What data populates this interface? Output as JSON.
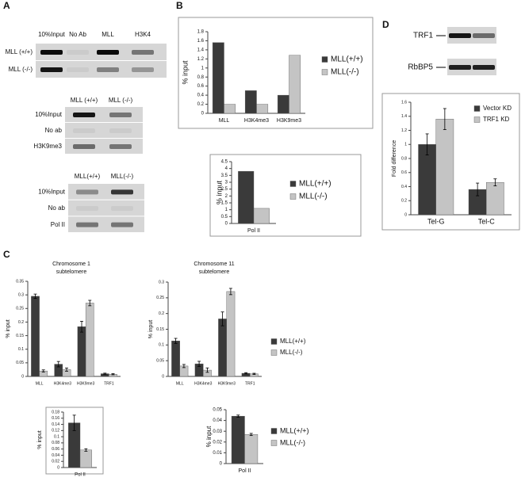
{
  "panel_labels": [
    "A",
    "B",
    "C",
    "D"
  ],
  "gels": [
    {
      "columns": [
        "10%Input",
        "No Ab",
        "MLL",
        "H3K4"
      ],
      "rows": [
        "MLL (+/+)",
        "MLL (-/-)"
      ]
    },
    {
      "columns": [
        "MLL (+/+)",
        "MLL (-/-)"
      ],
      "rows": [
        "10%Input",
        "No ab",
        "H3K9me3"
      ]
    },
    {
      "columns": [
        "MLL(+/+)",
        "MLL(-/-)"
      ],
      "rows": [
        "10%Input",
        "No ab",
        "Pol II"
      ]
    },
    {
      "columns": [],
      "rows": [
        "TRF1",
        "RbBP5"
      ]
    }
  ],
  "chart_data": [
    {
      "type": "bar",
      "y_label": "% input",
      "categories": [
        "MLL",
        "H3K4me3",
        "H3K9me3"
      ],
      "series": [
        {
          "name": "MLL(+/+)",
          "color": "#3a3a3a",
          "values": [
            1.56,
            0.5,
            0.4
          ]
        },
        {
          "name": "MLL(-/-)",
          "color": "#c4c4c4",
          "values": [
            0.2,
            0.2,
            1.28
          ]
        }
      ],
      "ylim": [
        0,
        1.8
      ],
      "yticks": [
        0,
        0.2,
        0.4,
        0.6,
        0.8,
        1,
        1.2,
        1.4,
        1.6,
        1.8
      ],
      "legend": "right"
    },
    {
      "type": "bar",
      "y_label": "% input",
      "categories": [
        "Pol II"
      ],
      "series": [
        {
          "name": "MLL(+/+)",
          "color": "#3a3a3a",
          "values": [
            3.8
          ]
        },
        {
          "name": "MLL(-/-)",
          "color": "#c4c4c4",
          "values": [
            1.1
          ]
        }
      ],
      "ylim": [
        0,
        4.5
      ],
      "yticks": [
        0,
        0.5,
        1,
        1.5,
        2,
        2.5,
        3,
        3.5,
        4,
        4.5
      ],
      "legend": "right"
    },
    {
      "type": "bar",
      "title": "Chromosome 1",
      "subtitle": "subtelomere",
      "y_label": "% input",
      "categories": [
        "MLL",
        "H3K4me3",
        "H3K9me3",
        "TRF1"
      ],
      "series": [
        {
          "color": "#3a3a3a",
          "values": [
            0.295,
            0.045,
            0.183,
            0.01
          ],
          "errors": [
            0.008,
            0.01,
            0.02,
            0.002
          ]
        },
        {
          "color": "#c4c4c4",
          "values": [
            0.02,
            0.025,
            0.27,
            0.008
          ],
          "errors": [
            0.004,
            0.006,
            0.01,
            0.002
          ]
        }
      ],
      "ylim": [
        0,
        0.35
      ],
      "yticks": [
        0,
        0.05,
        0.1,
        0.15,
        0.2,
        0.25,
        0.3,
        0.35
      ]
    },
    {
      "type": "bar",
      "title": "Chromosome 11",
      "subtitle": "subtelomere",
      "y_label": "% input",
      "categories": [
        "MLL",
        "H3K4me3",
        "H3K9me3",
        "TRF1"
      ],
      "series": [
        {
          "name": "MLL(+/+)",
          "color": "#3a3a3a",
          "values": [
            0.113,
            0.04,
            0.183,
            0.01
          ],
          "errors": [
            0.008,
            0.008,
            0.022,
            0.002
          ]
        },
        {
          "name": "MLL(-/-)",
          "color": "#c4c4c4",
          "values": [
            0.033,
            0.02,
            0.27,
            0.008
          ],
          "errors": [
            0.005,
            0.007,
            0.01,
            0.002
          ]
        }
      ],
      "ylim": [
        0,
        0.3
      ],
      "yticks": [
        0,
        0.05,
        0.1,
        0.15,
        0.2,
        0.25,
        0.3
      ],
      "legend": "right"
    },
    {
      "type": "bar",
      "y_label": "% input",
      "categories": [
        "Pol II"
      ],
      "series": [
        {
          "color": "#3a3a3a",
          "values": [
            0.145
          ],
          "errors": [
            0.025
          ]
        },
        {
          "color": "#c4c4c4",
          "values": [
            0.057
          ],
          "errors": [
            0.004
          ]
        }
      ],
      "ylim": [
        0,
        0.18
      ],
      "yticks": [
        0,
        0.02,
        0.04,
        0.06,
        0.08,
        0.1,
        0.12,
        0.14,
        0.16,
        0.18
      ]
    },
    {
      "type": "bar",
      "y_label": "% input",
      "categories": [
        "Pol II"
      ],
      "series": [
        {
          "name": "MLL(+/+)",
          "color": "#3a3a3a",
          "values": [
            0.044
          ],
          "errors": [
            0.001
          ]
        },
        {
          "name": "MLL(-/-)",
          "color": "#c4c4c4",
          "values": [
            0.027
          ],
          "errors": [
            0.001
          ]
        }
      ],
      "ylim": [
        0,
        0.05
      ],
      "yticks": [
        0,
        0.01,
        0.02,
        0.03,
        0.04,
        0.05
      ],
      "legend": "right"
    },
    {
      "type": "bar",
      "y_label": "Fold difference",
      "categories": [
        "Tel-G",
        "Tel-C"
      ],
      "series": [
        {
          "name": "Vector KD",
          "color": "#3a3a3a",
          "values": [
            1.0,
            0.36
          ],
          "errors": [
            0.15,
            0.09
          ]
        },
        {
          "name": "TRF1 KD",
          "color": "#c4c4c4",
          "values": [
            1.36,
            0.46
          ],
          "errors": [
            0.15,
            0.05
          ]
        }
      ],
      "ylim": [
        0,
        1.6
      ],
      "yticks": [
        0,
        0.2,
        0.4,
        0.6,
        0.8,
        1,
        1.2,
        1.4,
        1.6
      ],
      "legend": "upper right"
    }
  ]
}
